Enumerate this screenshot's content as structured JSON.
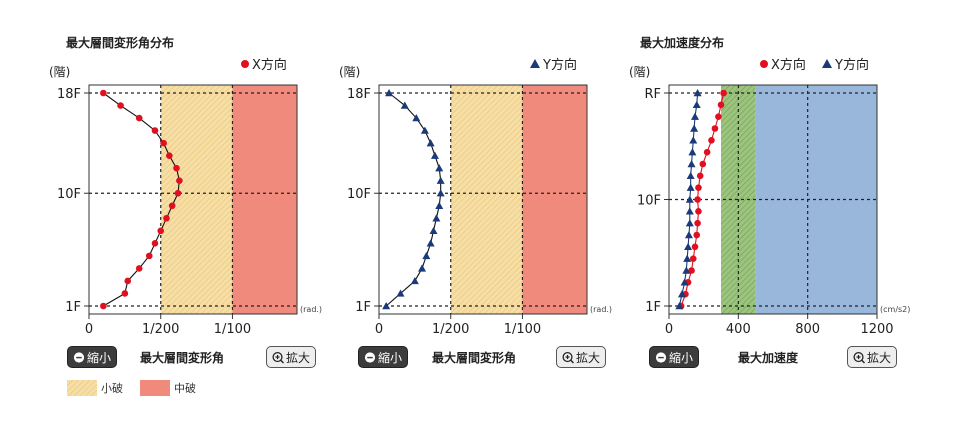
{
  "charts": [
    {
      "title": "最大層間変形角分布",
      "legend_label": "X方向",
      "marker": "circle",
      "color": "#e01020",
      "y_unit": "(階)",
      "x_unit": "(rad.)",
      "y_ticks": [
        "18F",
        "10F",
        "1F"
      ],
      "x_ticks": [
        "0",
        "1/200",
        "1/100"
      ],
      "zoom_out_label": "縮小",
      "caption": "最大層間変形角",
      "zoom_in_label": "拡大"
    },
    {
      "title": "",
      "legend_label": "Y方向",
      "marker": "triangle",
      "color": "#1a3a7a",
      "y_unit": "(階)",
      "x_unit": "(rad.)",
      "y_ticks": [
        "18F",
        "10F",
        "1F"
      ],
      "x_ticks": [
        "0",
        "1/200",
        "1/100"
      ],
      "zoom_out_label": "縮小",
      "caption": "最大層間変形角",
      "zoom_in_label": "拡大"
    },
    {
      "title": "最大加速度分布",
      "legend_x_label": "X方向",
      "legend_y_label": "Y方向",
      "y_unit": "(階)",
      "x_unit": "(cm/s2)",
      "y_ticks": [
        "RF",
        "10F",
        "1F"
      ],
      "x_ticks": [
        "0",
        "400",
        "800",
        "1200"
      ],
      "zoom_out_label": "縮小",
      "caption": "最大加速度",
      "zoom_in_label": "拡大"
    }
  ],
  "legend": {
    "minor_label": "小破",
    "moderate_label": "中破"
  },
  "colors": {
    "minor_zone": "#f6dfa6",
    "moderate_zone": "#ef8a7c",
    "accel_green": "#9cc47f",
    "accel_blue": "#99b7da",
    "x_series": "#e01020",
    "y_series": "#1a3a7a"
  },
  "chart_data": [
    {
      "type": "line",
      "title": "最大層間変形角分布",
      "xlabel": "(rad.)",
      "ylabel": "(階)",
      "xlim": [
        0,
        0.0145
      ],
      "ylim": [
        1,
        18
      ],
      "zones": [
        {
          "name": "小破",
          "from": 0.005,
          "to": 0.01
        },
        {
          "name": "中破",
          "from": 0.01,
          "to": 0.0145
        }
      ],
      "series": [
        {
          "name": "X方向",
          "floors": [
            1,
            2,
            3,
            4,
            5,
            6,
            7,
            8,
            9,
            10,
            11,
            12,
            13,
            14,
            15,
            16,
            17,
            18
          ],
          "values": [
            0.001,
            0.0025,
            0.0027,
            0.0035,
            0.0042,
            0.0046,
            0.005,
            0.0054,
            0.0058,
            0.0062,
            0.0063,
            0.0061,
            0.0056,
            0.0052,
            0.0046,
            0.0035,
            0.0022,
            0.001
          ]
        }
      ]
    },
    {
      "type": "line",
      "title": "",
      "xlabel": "(rad.)",
      "ylabel": "(階)",
      "xlim": [
        0,
        0.0145
      ],
      "ylim": [
        1,
        18
      ],
      "zones": [
        {
          "name": "小破",
          "from": 0.005,
          "to": 0.01
        },
        {
          "name": "中破",
          "from": 0.01,
          "to": 0.0145
        }
      ],
      "series": [
        {
          "name": "Y方向",
          "floors": [
            1,
            2,
            3,
            4,
            5,
            6,
            7,
            8,
            9,
            10,
            11,
            12,
            13,
            14,
            15,
            16,
            17,
            18
          ],
          "values": [
            0.0005,
            0.0015,
            0.0025,
            0.003,
            0.0033,
            0.0036,
            0.0038,
            0.004,
            0.0042,
            0.0043,
            0.0043,
            0.0042,
            0.0039,
            0.0036,
            0.0032,
            0.0026,
            0.0018,
            0.0007
          ]
        }
      ]
    },
    {
      "type": "line",
      "title": "最大加速度分布",
      "xlabel": "(cm/s2)",
      "ylabel": "(階)",
      "xlim": [
        0,
        1200
      ],
      "ylim": [
        1,
        19
      ],
      "floor_labels": {
        "1": "1F",
        "10": "10F",
        "19": "RF"
      },
      "bands": [
        {
          "from": 300,
          "to": 500,
          "color": "#9cc47f"
        },
        {
          "from": 500,
          "to": 1200,
          "color": "#99b7da"
        }
      ],
      "series": [
        {
          "name": "X方向",
          "floors": [
            1,
            2,
            3,
            4,
            5,
            6,
            7,
            8,
            9,
            10,
            11,
            12,
            13,
            14,
            15,
            16,
            17,
            18,
            19
          ],
          "values": [
            70,
            95,
            110,
            130,
            140,
            150,
            160,
            165,
            170,
            165,
            170,
            180,
            195,
            220,
            245,
            265,
            285,
            300,
            315
          ]
        },
        {
          "name": "Y方向",
          "floors": [
            1,
            2,
            3,
            4,
            5,
            6,
            7,
            8,
            9,
            10,
            11,
            12,
            13,
            14,
            15,
            16,
            17,
            18,
            19
          ],
          "values": [
            60,
            75,
            90,
            100,
            105,
            110,
            115,
            120,
            120,
            120,
            125,
            125,
            130,
            135,
            140,
            145,
            150,
            160,
            165
          ]
        }
      ]
    }
  ]
}
